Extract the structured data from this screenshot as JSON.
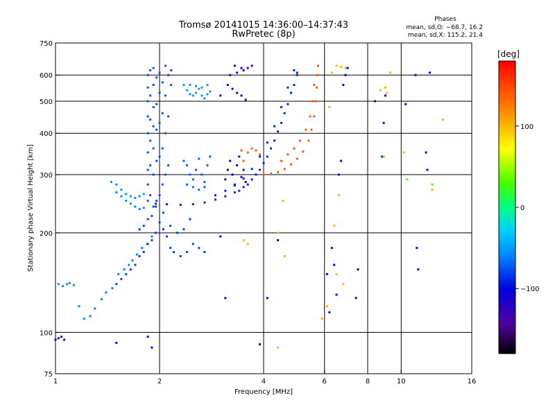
{
  "chart_data": {
    "type": "scatter",
    "title": "Tromsø 20141015 14:36:00–14:37:43",
    "subtitle": "RwPretec (8p)",
    "xlabel": "Frequency [MHz]",
    "ylabel": "Stationary phase Virtual Height [km]",
    "x_scale": "log",
    "y_scale": "log",
    "xlim": [
      1,
      16
    ],
    "ylim": [
      75,
      750
    ],
    "x_ticks": [
      1,
      2,
      4,
      6,
      8,
      10,
      16
    ],
    "x_tick_labels": [
      "1",
      "2",
      "4",
      "6",
      "8",
      "10",
      "16"
    ],
    "x_grid": [
      2,
      4,
      6,
      8,
      10
    ],
    "y_ticks": [
      75,
      100,
      200,
      300,
      400,
      500,
      600,
      750
    ],
    "y_tick_labels": [
      "75",
      "100",
      "200",
      "300",
      "400",
      "500",
      "600",
      "750"
    ],
    "y_grid": [
      100,
      200,
      300,
      400,
      500,
      600
    ],
    "grid": true,
    "phase_info": {
      "heading": "Phases",
      "line_o": "mean, sd,O: −68.7, 16.2",
      "line_x": "mean, sd,X: 115.2, 21.4"
    },
    "colorbar": {
      "label": "[deg]",
      "range": [
        -180,
        180
      ],
      "ticks": [
        100,
        0,
        -100
      ],
      "tick_labels": [
        "100",
        "0",
        "−100"
      ]
    },
    "series": [
      {
        "color_phase": -100,
        "points": [
          [
            1.0,
            95
          ],
          [
            1.02,
            96
          ],
          [
            1.04,
            97
          ],
          [
            1.06,
            95
          ]
        ]
      },
      {
        "color_phase": -60,
        "points": [
          [
            1.02,
            140
          ],
          [
            1.05,
            138
          ],
          [
            1.08,
            140
          ],
          [
            1.1,
            141
          ],
          [
            1.13,
            139
          ],
          [
            1.17,
            120
          ],
          [
            1.21,
            110
          ],
          [
            1.26,
            112
          ],
          [
            1.3,
            118
          ],
          [
            1.36,
            126
          ],
          [
            1.4,
            132
          ],
          [
            1.46,
            136
          ],
          [
            1.52,
            150
          ],
          [
            1.58,
            155
          ],
          [
            1.63,
            160
          ],
          [
            1.67,
            165
          ],
          [
            1.72,
            172
          ],
          [
            1.78,
            180
          ],
          [
            1.84,
            185
          ],
          [
            1.9,
            195
          ]
        ]
      },
      {
        "color_phase": -80,
        "points": [
          [
            1.5,
            140
          ],
          [
            1.55,
            145
          ],
          [
            1.6,
            150
          ],
          [
            1.65,
            155
          ],
          [
            1.7,
            160
          ],
          [
            1.75,
            170
          ],
          [
            1.8,
            175
          ],
          [
            1.85,
            185
          ],
          [
            1.9,
            190
          ],
          [
            1.95,
            200
          ],
          [
            2.0,
            215
          ],
          [
            2.05,
            205
          ],
          [
            2.1,
            195
          ],
          [
            2.15,
            180
          ],
          [
            2.2,
            175
          ],
          [
            2.3,
            170
          ],
          [
            2.4,
            175
          ],
          [
            2.5,
            185
          ],
          [
            2.6,
            180
          ],
          [
            2.7,
            175
          ],
          [
            1.75,
            205
          ],
          [
            1.8,
            210
          ],
          [
            1.85,
            220
          ],
          [
            1.9,
            225
          ],
          [
            1.95,
            240
          ],
          [
            2.05,
            230
          ],
          [
            2.15,
            210
          ],
          [
            2.25,
            200
          ],
          [
            2.35,
            205
          ],
          [
            2.45,
            220
          ]
        ]
      },
      {
        "color_phase": -55,
        "points": [
          [
            1.45,
            285
          ],
          [
            1.5,
            280
          ],
          [
            1.55,
            270
          ],
          [
            1.6,
            262
          ],
          [
            1.65,
            258
          ],
          [
            1.7,
            255
          ],
          [
            1.75,
            258
          ],
          [
            1.8,
            262
          ],
          [
            1.5,
            265
          ],
          [
            1.55,
            258
          ],
          [
            1.6,
            250
          ],
          [
            1.65,
            245
          ],
          [
            1.7,
            240
          ],
          [
            1.75,
            236
          ],
          [
            1.8,
            238
          ]
        ]
      },
      {
        "color_phase": -75,
        "points": [
          [
            1.85,
            250
          ],
          [
            1.85,
            280
          ],
          [
            1.85,
            310
          ],
          [
            1.85,
            350
          ],
          [
            1.85,
            400
          ],
          [
            1.85,
            450
          ],
          [
            1.85,
            500
          ],
          [
            1.85,
            550
          ],
          [
            1.85,
            600
          ],
          [
            1.88,
            260
          ],
          [
            1.88,
            320
          ],
          [
            1.88,
            380
          ],
          [
            1.88,
            440
          ],
          [
            1.88,
            520
          ],
          [
            1.88,
            620
          ],
          [
            1.92,
            240
          ],
          [
            1.92,
            300
          ],
          [
            1.92,
            360
          ],
          [
            1.92,
            420
          ],
          [
            1.92,
            480
          ],
          [
            1.92,
            560
          ],
          [
            1.92,
            630
          ],
          [
            1.96,
            250
          ],
          [
            1.96,
            330
          ],
          [
            1.96,
            410
          ],
          [
            1.96,
            490
          ],
          [
            1.96,
            590
          ],
          [
            2.0,
            260
          ],
          [
            2.0,
            340
          ],
          [
            2.0,
            430
          ],
          [
            2.0,
            530
          ],
          [
            2.0,
            610
          ],
          [
            2.04,
            280
          ],
          [
            2.04,
            360
          ],
          [
            2.04,
            460
          ],
          [
            2.04,
            570
          ],
          [
            2.08,
            300
          ],
          [
            2.08,
            400
          ],
          [
            2.08,
            520
          ],
          [
            2.08,
            640
          ],
          [
            2.12,
            320
          ],
          [
            2.12,
            450
          ],
          [
            2.12,
            600
          ],
          [
            2.16,
            560
          ],
          [
            2.16,
            620
          ]
        ]
      },
      {
        "color_phase": -50,
        "points": [
          [
            2.35,
            560
          ],
          [
            2.4,
            540
          ],
          [
            2.45,
            525
          ],
          [
            2.5,
            520
          ],
          [
            2.55,
            530
          ],
          [
            2.6,
            545
          ],
          [
            2.65,
            520
          ],
          [
            2.7,
            510
          ],
          [
            2.75,
            525
          ],
          [
            2.8,
            535
          ],
          [
            2.45,
            560
          ],
          [
            2.55,
            555
          ],
          [
            2.65,
            550
          ],
          [
            2.75,
            560
          ]
        ]
      },
      {
        "color_phase": -70,
        "points": [
          [
            2.35,
            330
          ],
          [
            2.4,
            320
          ],
          [
            2.45,
            300
          ],
          [
            2.5,
            290
          ],
          [
            2.55,
            310
          ],
          [
            2.6,
            335
          ],
          [
            2.65,
            300
          ],
          [
            2.7,
            285
          ],
          [
            2.75,
            320
          ],
          [
            2.8,
            340
          ],
          [
            2.4,
            280
          ],
          [
            2.5,
            275
          ],
          [
            2.6,
            270
          ],
          [
            2.7,
            275
          ]
        ]
      },
      {
        "color_phase": -90,
        "points": [
          [
            1.95,
            245
          ],
          [
            2.1,
            244
          ],
          [
            2.3,
            243
          ],
          [
            2.5,
            244
          ],
          [
            2.7,
            247
          ],
          [
            2.9,
            252
          ],
          [
            3.1,
            258
          ],
          [
            3.3,
            265
          ],
          [
            3.5,
            275
          ],
          [
            3.7,
            290
          ],
          [
            3.9,
            310
          ],
          [
            4.1,
            340
          ],
          [
            4.3,
            380
          ],
          [
            4.5,
            430
          ],
          [
            4.7,
            490
          ],
          [
            4.9,
            560
          ],
          [
            5.0,
            610
          ],
          [
            2.9,
            260
          ],
          [
            3.1,
            268
          ],
          [
            3.3,
            278
          ],
          [
            3.5,
            292
          ],
          [
            3.7,
            312
          ],
          [
            3.9,
            340
          ],
          [
            4.1,
            375
          ],
          [
            4.3,
            420
          ],
          [
            4.5,
            480
          ],
          [
            4.7,
            550
          ],
          [
            4.9,
            620
          ],
          [
            3.4,
            268
          ],
          [
            3.6,
            280
          ],
          [
            3.8,
            300
          ],
          [
            4.0,
            325
          ],
          [
            4.2,
            360
          ],
          [
            4.4,
            405
          ],
          [
            4.6,
            460
          ],
          [
            4.8,
            530
          ],
          [
            5.0,
            600
          ]
        ]
      },
      {
        "color_phase": -115,
        "points": [
          [
            3.1,
            290
          ],
          [
            3.15,
            310
          ],
          [
            3.2,
            330
          ],
          [
            3.25,
            300
          ],
          [
            3.3,
            280
          ],
          [
            3.35,
            320
          ],
          [
            3.4,
            340
          ],
          [
            3.45,
            295
          ],
          [
            3.5,
            310
          ],
          [
            3.55,
            285
          ],
          [
            3.15,
            560
          ],
          [
            3.25,
            545
          ],
          [
            3.35,
            530
          ],
          [
            3.45,
            520
          ],
          [
            3.55,
            505
          ],
          [
            3.2,
            600
          ],
          [
            3.35,
            610
          ],
          [
            3.5,
            620
          ],
          [
            3.6,
            630
          ],
          [
            3.7,
            640
          ],
          [
            3.3,
            640
          ],
          [
            3.45,
            630
          ],
          [
            3.0,
            520
          ]
        ]
      },
      {
        "color_phase": 140,
        "points": [
          [
            4.0,
            300
          ],
          [
            4.2,
            302
          ],
          [
            4.4,
            305
          ],
          [
            4.6,
            312
          ],
          [
            4.8,
            322
          ],
          [
            5.0,
            335
          ],
          [
            5.2,
            352
          ],
          [
            5.4,
            380
          ],
          [
            5.5,
            410
          ],
          [
            5.6,
            450
          ],
          [
            5.65,
            500
          ],
          [
            5.7,
            550
          ],
          [
            5.72,
            600
          ],
          [
            5.75,
            640
          ],
          [
            4.5,
            330
          ],
          [
            4.7,
            345
          ],
          [
            4.9,
            360
          ],
          [
            5.1,
            380
          ],
          [
            5.3,
            410
          ],
          [
            5.45,
            450
          ],
          [
            5.55,
            500
          ],
          [
            5.6,
            560
          ],
          [
            3.6,
            350
          ],
          [
            3.7,
            360
          ],
          [
            3.8,
            355
          ],
          [
            3.9,
            345
          ],
          [
            3.5,
            330
          ],
          [
            3.45,
            355
          ]
        ]
      },
      {
        "color_phase": -100,
        "points": [
          [
            6.3,
            180
          ],
          [
            6.4,
            160
          ],
          [
            6.5,
            130
          ],
          [
            6.6,
            300
          ],
          [
            6.7,
            330
          ],
          [
            6.2,
            115
          ],
          [
            6.1,
            150
          ],
          [
            6.8,
            560
          ],
          [
            6.9,
            600
          ],
          [
            7.0,
            630
          ],
          [
            7.5,
            155
          ],
          [
            7.4,
            127
          ],
          [
            8.4,
            500
          ],
          [
            8.9,
            430
          ],
          [
            8.8,
            340
          ],
          [
            9.0,
            520
          ],
          [
            11.1,
            180
          ],
          [
            11.2,
            155
          ],
          [
            11.0,
            600
          ],
          [
            10.3,
            490
          ],
          [
            12.1,
            610
          ],
          [
            11.8,
            350
          ],
          [
            11.9,
            310
          ],
          [
            3.0,
            195
          ],
          [
            3.1,
            127
          ],
          [
            4.1,
            127
          ],
          [
            3.9,
            92
          ],
          [
            4.4,
            190
          ],
          [
            1.5,
            93
          ],
          [
            1.85,
            97
          ],
          [
            1.9,
            90
          ]
        ]
      },
      {
        "color_phase": 100,
        "points": [
          [
            6.5,
            640
          ],
          [
            6.7,
            635
          ],
          [
            6.9,
            630
          ],
          [
            6.3,
            610
          ],
          [
            6.2,
            480
          ],
          [
            6.6,
            260
          ],
          [
            6.4,
            210
          ],
          [
            6.5,
            150
          ],
          [
            6.8,
            140
          ],
          [
            9.0,
            550
          ],
          [
            9.1,
            530
          ],
          [
            9.3,
            610
          ],
          [
            8.7,
            540
          ],
          [
            4.6,
            170
          ],
          [
            4.55,
            250
          ],
          [
            4.4,
            200
          ],
          [
            3.5,
            190
          ],
          [
            3.6,
            185
          ],
          [
            4.4,
            90
          ],
          [
            10.2,
            350
          ],
          [
            13.2,
            440
          ],
          [
            12.3,
            270
          ],
          [
            5.9,
            110
          ],
          [
            6.1,
            120
          ]
        ]
      },
      {
        "color_phase": 30,
        "points": [
          [
            12.3,
            280
          ],
          [
            10.4,
            290
          ],
          [
            8.9,
            340
          ]
        ]
      }
    ]
  }
}
